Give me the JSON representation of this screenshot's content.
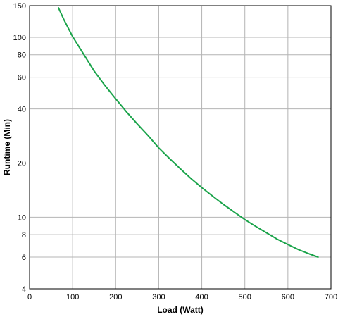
{
  "chart_data": {
    "type": "line",
    "title": "",
    "xlabel": "Load (Watt)",
    "ylabel": "Runtime (Min)",
    "x_range": [
      0,
      700
    ],
    "y_range": [
      4,
      150
    ],
    "y_scale": "log",
    "grid": true,
    "legend": "none",
    "x_ticks": [
      "0",
      "100",
      "200",
      "300",
      "400",
      "500",
      "600",
      "700"
    ],
    "y_ticks": [
      "4",
      "6",
      "8",
      "10",
      "20",
      "40",
      "60",
      "80",
      "100",
      "150"
    ],
    "colors": {
      "series": "#1aa34a",
      "grid": "#b4b4b4",
      "frame": "#000000"
    },
    "series": [
      {
        "x": [
          67,
          80,
          100,
          125,
          150,
          175,
          200,
          225,
          250,
          275,
          300,
          325,
          350,
          375,
          400,
          425,
          450,
          475,
          500,
          525,
          550,
          575,
          600,
          625,
          650,
          670
        ],
        "y": [
          146,
          125,
          101,
          81,
          65,
          54,
          45.5,
          38.5,
          33,
          28.5,
          24.3,
          21.2,
          18.6,
          16.4,
          14.6,
          13.1,
          11.8,
          10.7,
          9.7,
          8.9,
          8.2,
          7.55,
          7.05,
          6.6,
          6.25,
          6.0
        ]
      }
    ]
  }
}
